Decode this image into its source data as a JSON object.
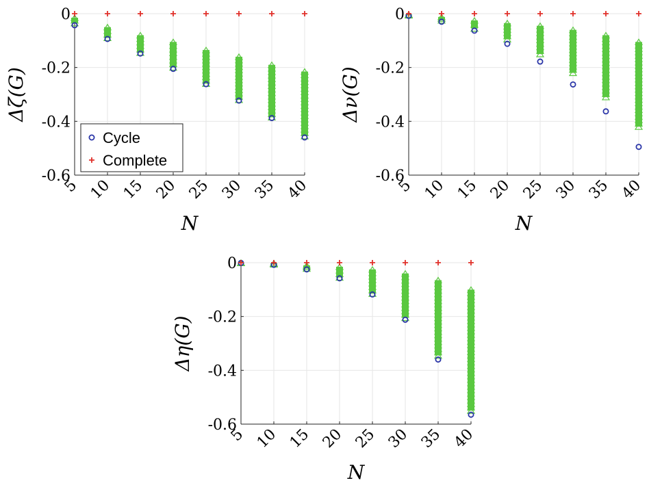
{
  "chart_data": [
    {
      "type": "scatter",
      "ylabel": "Δζ(G)",
      "xlabel": "N",
      "x_ticks": [
        "5",
        "10",
        "15",
        "20",
        "25",
        "30",
        "35",
        "40"
      ],
      "y_ticks": [
        "0",
        "-0.2",
        "-0.4",
        "-0.6"
      ],
      "xlim": [
        5,
        40
      ],
      "ylim": [
        -0.6,
        0
      ],
      "grid": true,
      "legend": {
        "position": "bottom-left",
        "entries": [
          "Cycle",
          "Complete"
        ]
      },
      "series": [
        {
          "name": "Cycle",
          "marker": "circle",
          "color": "#2b36a8",
          "x": [
            5,
            10,
            15,
            20,
            25,
            30,
            35,
            40
          ],
          "y": [
            -0.043,
            -0.094,
            -0.148,
            -0.205,
            -0.262,
            -0.323,
            -0.388,
            -0.46
          ]
        },
        {
          "name": "Complete",
          "marker": "plus",
          "color": "#e0302a",
          "x": [
            5,
            10,
            15,
            20,
            25,
            30,
            35,
            40
          ],
          "y": [
            0,
            0,
            0,
            0,
            0,
            0,
            0,
            0
          ]
        },
        {
          "marker": "triangle",
          "color": "#5ac840",
          "x": [
            5,
            10,
            15,
            20,
            25,
            30,
            35,
            40
          ],
          "ymin": [
            -0.035,
            -0.09,
            -0.145,
            -0.2,
            -0.26,
            -0.32,
            -0.385,
            -0.455
          ],
          "ymax": [
            -0.015,
            -0.05,
            -0.08,
            -0.105,
            -0.135,
            -0.16,
            -0.19,
            -0.215
          ]
        }
      ]
    },
    {
      "type": "scatter",
      "ylabel": "Δν(G)",
      "xlabel": "N",
      "x_ticks": [
        "5",
        "10",
        "15",
        "20",
        "25",
        "30",
        "35",
        "40"
      ],
      "y_ticks": [
        "0",
        "-0.2",
        "-0.4",
        "-0.6"
      ],
      "xlim": [
        5,
        40
      ],
      "ylim": [
        -0.6,
        0
      ],
      "grid": true,
      "series": [
        {
          "name": "Cycle",
          "marker": "circle",
          "color": "#2b36a8",
          "x": [
            5,
            10,
            15,
            20,
            25,
            30,
            35,
            40
          ],
          "y": [
            -0.008,
            -0.03,
            -0.063,
            -0.112,
            -0.178,
            -0.263,
            -0.363,
            -0.495
          ]
        },
        {
          "name": "Complete",
          "marker": "plus",
          "color": "#e0302a",
          "x": [
            5,
            10,
            15,
            20,
            25,
            30,
            35,
            40
          ],
          "y": [
            0,
            0,
            0,
            0,
            0,
            0,
            0,
            0
          ]
        },
        {
          "marker": "triangle",
          "color": "#5ac840",
          "x": [
            5,
            10,
            15,
            20,
            25,
            30,
            35,
            40
          ],
          "ymin": [
            -0.006,
            -0.025,
            -0.055,
            -0.095,
            -0.15,
            -0.22,
            -0.31,
            -0.42
          ],
          "ymax": [
            -0.003,
            -0.012,
            -0.025,
            -0.035,
            -0.045,
            -0.06,
            -0.08,
            -0.105
          ]
        }
      ]
    },
    {
      "type": "scatter",
      "ylabel": "Δη(G)",
      "xlabel": "N",
      "x_ticks": [
        "5",
        "10",
        "15",
        "20",
        "25",
        "30",
        "35",
        "40"
      ],
      "y_ticks": [
        "0",
        "-0.2",
        "-0.4",
        "-0.6"
      ],
      "xlim": [
        5,
        40
      ],
      "ylim": [
        -0.6,
        0
      ],
      "grid": true,
      "series": [
        {
          "name": "Cycle",
          "marker": "circle",
          "color": "#2b36a8",
          "x": [
            5,
            10,
            15,
            20,
            25,
            30,
            35,
            40
          ],
          "y": [
            -0.001,
            -0.008,
            -0.025,
            -0.058,
            -0.118,
            -0.212,
            -0.36,
            -0.565
          ]
        },
        {
          "name": "Complete",
          "marker": "plus",
          "color": "#e0302a",
          "x": [
            5,
            10,
            15,
            20,
            25,
            30,
            35,
            40
          ],
          "y": [
            0,
            0,
            0,
            0,
            0,
            0,
            0,
            0
          ]
        },
        {
          "marker": "triangle",
          "color": "#5ac840",
          "x": [
            5,
            10,
            15,
            20,
            25,
            30,
            35,
            40
          ],
          "ymin": [
            -0.001,
            -0.006,
            -0.022,
            -0.055,
            -0.115,
            -0.205,
            -0.345,
            -0.55
          ],
          "ymax": [
            0,
            -0.002,
            -0.01,
            -0.015,
            -0.025,
            -0.04,
            -0.065,
            -0.1
          ]
        }
      ]
    }
  ]
}
